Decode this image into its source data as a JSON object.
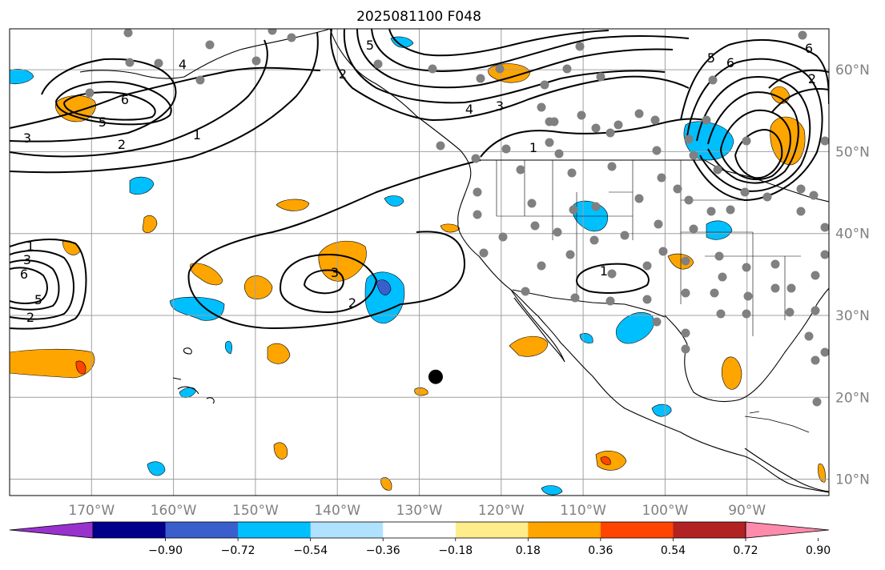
{
  "title": "2025081100 F048",
  "map": {
    "lon_range": [
      -180,
      -80
    ],
    "lat_range": [
      8,
      65
    ],
    "lon_ticks": [
      {
        "value": -170,
        "label": "170°W"
      },
      {
        "value": -160,
        "label": "160°W"
      },
      {
        "value": -150,
        "label": "150°W"
      },
      {
        "value": -140,
        "label": "140°W"
      },
      {
        "value": -130,
        "label": "130°W"
      },
      {
        "value": -120,
        "label": "120°W"
      },
      {
        "value": -110,
        "label": "110°W"
      },
      {
        "value": -100,
        "label": "100°W"
      },
      {
        "value": -90,
        "label": "90°W"
      }
    ],
    "lat_ticks": [
      {
        "value": 10,
        "label": "10°N"
      },
      {
        "value": 20,
        "label": "20°N"
      },
      {
        "value": 30,
        "label": "30°N"
      },
      {
        "value": 40,
        "label": "40°N"
      },
      {
        "value": 50,
        "label": "50°N"
      },
      {
        "value": 60,
        "label": "60°N"
      }
    ],
    "grid": true
  },
  "colorbar": {
    "labels": [
      "−0.90",
      "−0.72",
      "−0.54",
      "−0.36",
      "−0.18",
      "0.18",
      "0.36",
      "0.54",
      "0.72",
      "0.90"
    ],
    "colors": [
      "#9932cc",
      "#00008b",
      "#3a5fcd",
      "#00bfff",
      "#b0e2ff",
      "#ffffff",
      "#ffec8b",
      "#ffa500",
      "#ff4500",
      "#b22222",
      "#ff8bac"
    ],
    "extend": "both"
  },
  "contour_labels": [
    "1",
    "2",
    "3",
    "4",
    "5",
    "6"
  ],
  "storm_marker": {
    "lon": -128,
    "lat": 22.5
  },
  "station_color": "#808080",
  "contour_color": "#000000"
}
